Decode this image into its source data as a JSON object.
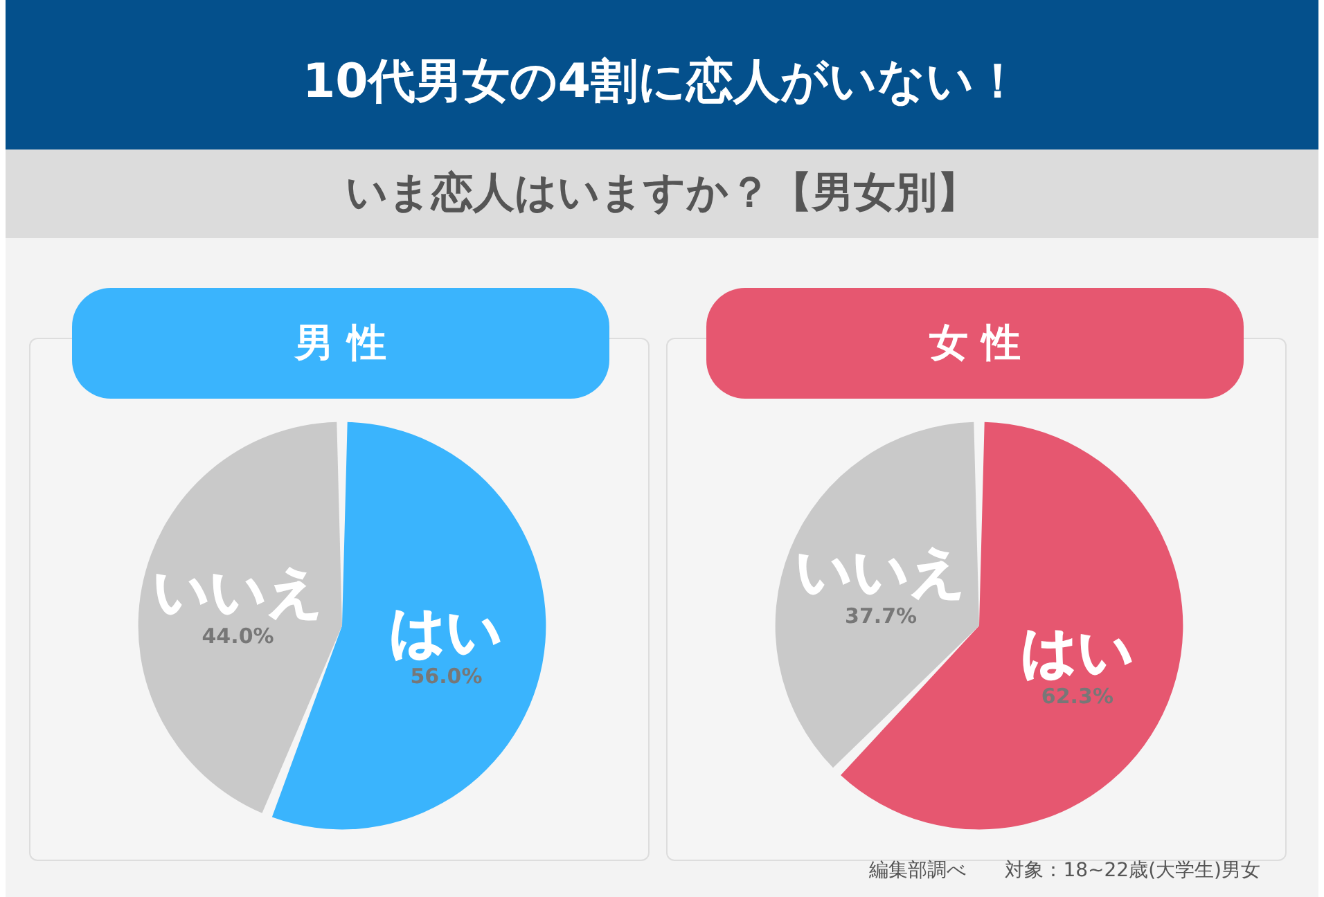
{
  "chart_data": [
    {
      "type": "other",
      "title": "10代男女の4割に恋人がいない！",
      "subtitle": "いま恋人はいますか？【男女別】"
    },
    {
      "type": "pie",
      "title": "男 性",
      "categories": [
        "はい",
        "いいえ"
      ],
      "values": [
        56.0,
        44.0
      ],
      "value_labels": [
        "56.0%",
        "44.0%"
      ],
      "colors": [
        "#3ab4fd",
        "#c9c9c9"
      ]
    },
    {
      "type": "pie",
      "title": "女 性",
      "categories": [
        "はい",
        "いいえ"
      ],
      "values": [
        62.3,
        37.7
      ],
      "value_labels": [
        "62.3%",
        "37.7%"
      ],
      "colors": [
        "#e65770",
        "#c9c9c9"
      ],
      "annotations": [
        "編集部調べ　　対象：18~22歳(大学生)男女"
      ]
    }
  ]
}
